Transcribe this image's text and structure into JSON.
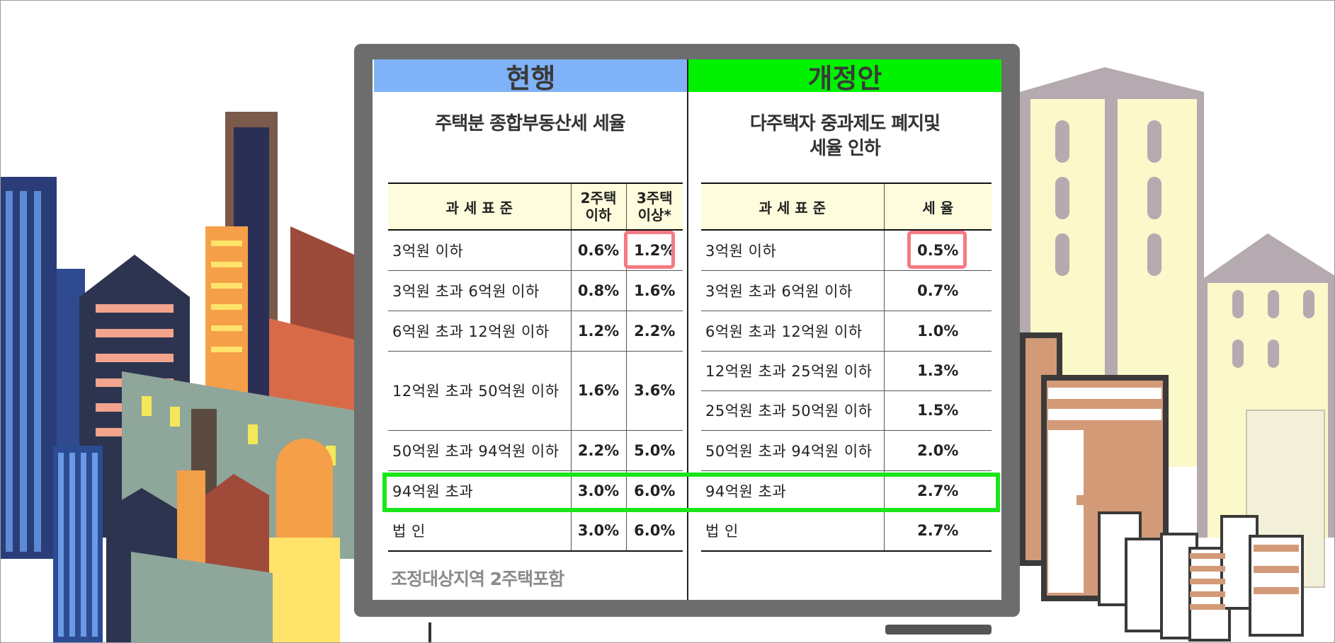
{
  "current": {
    "header": "현행",
    "subtitle": "주택분 종합부동산세 세율",
    "columns": [
      "과 세 표 준",
      "2주택\n이하",
      "3주택\n이상*"
    ],
    "rows": [
      [
        "3억원 이하",
        "0.6%",
        "1.2%"
      ],
      [
        "3억원 초과 6억원 이하",
        "0.8%",
        "1.6%"
      ],
      [
        "6억원 초과 12억원 이하",
        "1.2%",
        "2.2%"
      ],
      [
        "12억원 초과 50억원 이하",
        "1.6%",
        "3.6%"
      ],
      [
        "50억원 초과 94억원 이하",
        "2.2%",
        "5.0%"
      ],
      [
        "94억원 초과",
        "3.0%",
        "6.0%"
      ],
      [
        "법 인",
        "3.0%",
        "6.0%"
      ]
    ],
    "footnote": "조정대상지역 2주택포함"
  },
  "revised": {
    "header": "개정안",
    "subtitle": "다주택자 중과제도 폐지및\n세율 인하",
    "columns": [
      "과 세 표 준",
      "세 율"
    ],
    "rows": [
      [
        "3억원 이하",
        "0.5%"
      ],
      [
        "3억원 초과 6억원 이하",
        "0.7%"
      ],
      [
        "6억원 초과 12억원 이하",
        "1.0%"
      ],
      [
        "12억원 초과 25억원 이하",
        "1.3%"
      ],
      [
        "25억원 초과 50억원 이하",
        "1.5%"
      ],
      [
        "50억원 초과 94억원 이하",
        "2.0%"
      ],
      [
        "94억원 초과",
        "2.7%"
      ],
      [
        "법 인",
        "2.7%"
      ]
    ]
  },
  "colors": {
    "current_header": "#7fb2f7",
    "revised_header": "#00f200",
    "highlight_pink": "#f47a84",
    "highlight_green": "#19e619",
    "table_header_bg": "#fefcdc"
  }
}
